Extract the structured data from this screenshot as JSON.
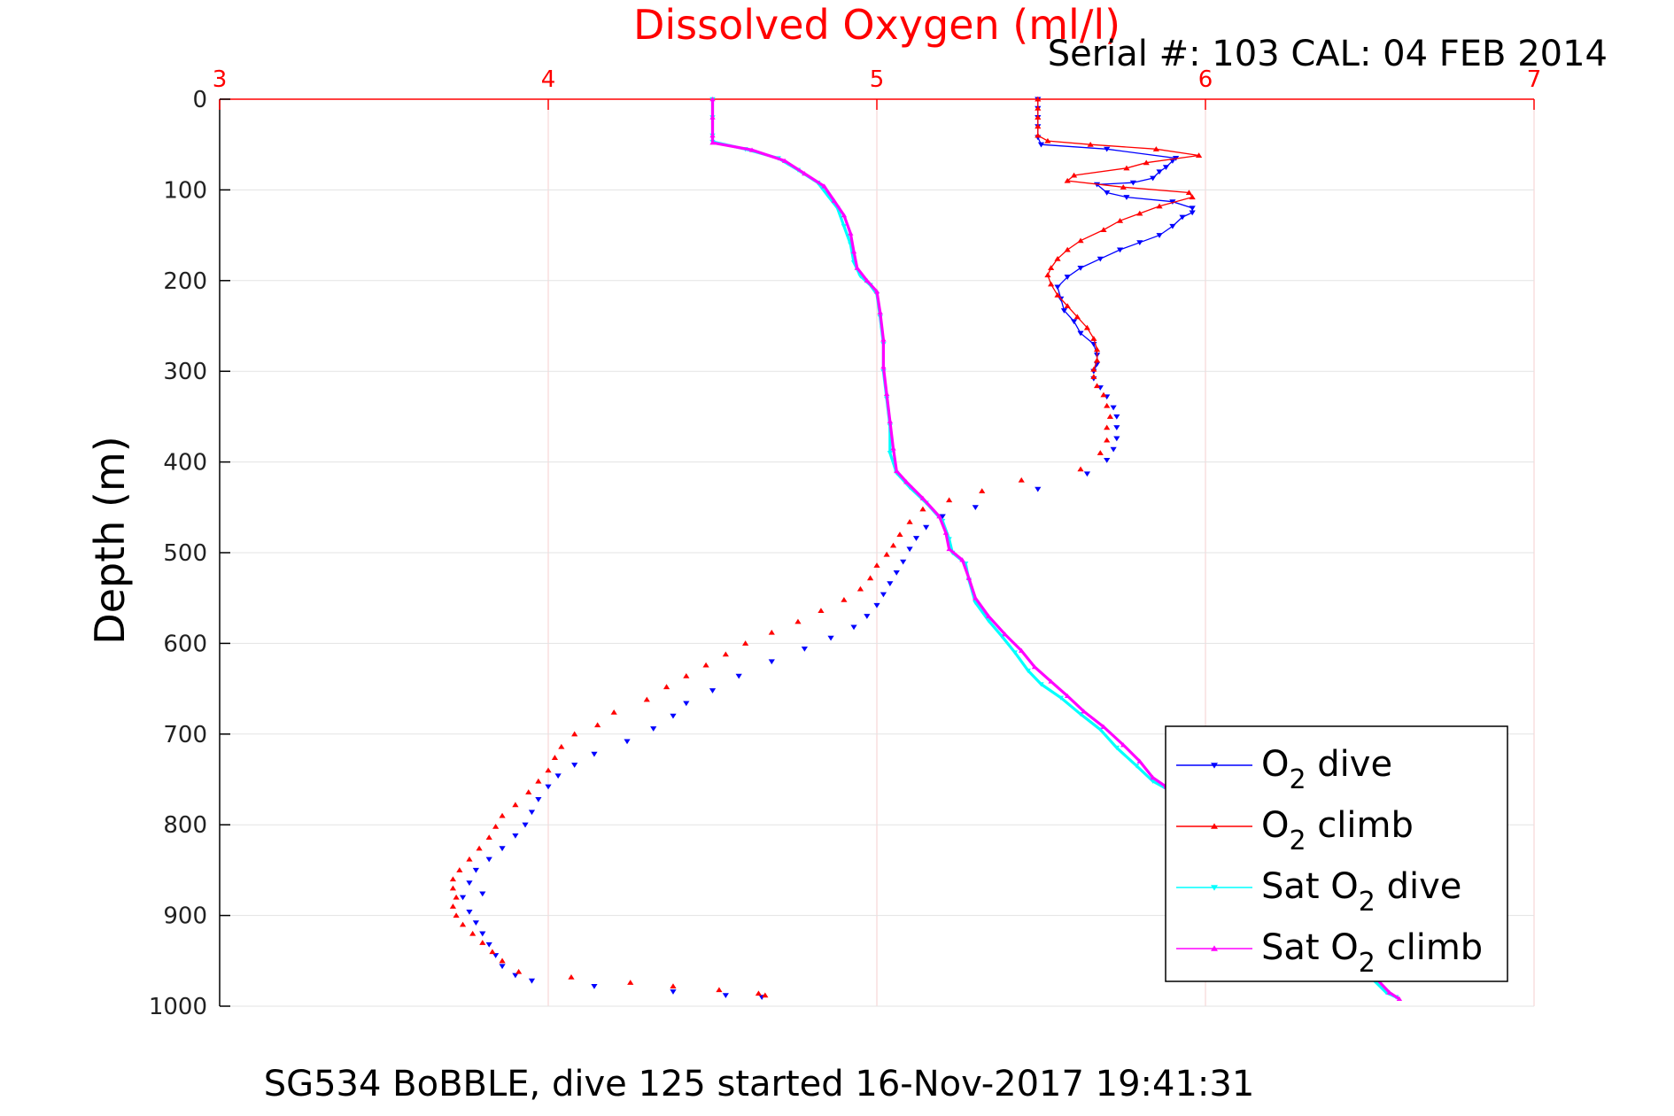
{
  "chart_data": {
    "type": "scatter",
    "title": "Dissolved Oxygen (ml/l)",
    "serial_label": "Serial #: 103  CAL: 04 FEB 2014",
    "caption": "SG534 BoBBLE, dive 125 started 16-Nov-2017 19:41:31",
    "xlabel": "",
    "ylabel": "Depth (m)",
    "xlim": [
      3,
      7
    ],
    "ylim": [
      0,
      1000
    ],
    "y_reversed": true,
    "x_axis_position": "top",
    "x_ticks": [
      3,
      4,
      5,
      6,
      7
    ],
    "y_ticks": [
      0,
      100,
      200,
      300,
      400,
      500,
      600,
      700,
      800,
      900,
      1000
    ],
    "grid": true,
    "legend_position": "bottom-right",
    "colors": {
      "o2_dive": "#0000ff",
      "o2_climb": "#ff0000",
      "sat_dive": "#00ffff",
      "sat_climb": "#ff00ff",
      "x_axis_color": "#ff0000",
      "grid_color": "#f6cfcf"
    },
    "series": [
      {
        "key": "o2_dive",
        "legend_name": "O",
        "legend_sub": "2",
        "legend_suffix": " dive",
        "legend_prefix": "",
        "color": "#0000ff",
        "marker": "triangle-down",
        "connected_to_depth": 300,
        "points": [
          [
            5.49,
            0
          ],
          [
            5.49,
            10
          ],
          [
            5.49,
            20
          ],
          [
            5.49,
            30
          ],
          [
            5.49,
            42
          ],
          [
            5.5,
            50
          ],
          [
            5.7,
            55
          ],
          [
            5.91,
            65
          ],
          [
            5.9,
            68
          ],
          [
            5.88,
            75
          ],
          [
            5.86,
            80
          ],
          [
            5.84,
            87
          ],
          [
            5.78,
            92
          ],
          [
            5.67,
            94
          ],
          [
            5.7,
            103
          ],
          [
            5.76,
            108
          ],
          [
            5.9,
            113
          ],
          [
            5.96,
            120
          ],
          [
            5.96,
            125
          ],
          [
            5.93,
            130
          ],
          [
            5.9,
            140
          ],
          [
            5.86,
            150
          ],
          [
            5.8,
            158
          ],
          [
            5.74,
            166
          ],
          [
            5.68,
            176
          ],
          [
            5.62,
            186
          ],
          [
            5.58,
            196
          ],
          [
            5.55,
            207
          ],
          [
            5.56,
            220
          ],
          [
            5.57,
            233
          ],
          [
            5.6,
            245
          ],
          [
            5.62,
            258
          ],
          [
            5.66,
            270
          ],
          [
            5.67,
            282
          ],
          [
            5.67,
            292
          ],
          [
            5.66,
            300
          ],
          [
            5.66,
            308
          ],
          [
            5.68,
            318
          ],
          [
            5.7,
            328
          ],
          [
            5.72,
            340
          ],
          [
            5.73,
            350
          ],
          [
            5.73,
            362
          ],
          [
            5.73,
            374
          ],
          [
            5.72,
            386
          ],
          [
            5.7,
            398
          ],
          [
            5.64,
            413
          ],
          [
            5.49,
            430
          ],
          [
            5.3,
            450
          ],
          [
            5.2,
            460
          ],
          [
            5.15,
            472
          ],
          [
            5.12,
            484
          ],
          [
            5.1,
            496
          ],
          [
            5.08,
            510
          ],
          [
            5.06,
            522
          ],
          [
            5.04,
            534
          ],
          [
            5.02,
            546
          ],
          [
            5.0,
            558
          ],
          [
            4.97,
            570
          ],
          [
            4.93,
            582
          ],
          [
            4.86,
            594
          ],
          [
            4.78,
            606
          ],
          [
            4.68,
            620
          ],
          [
            4.58,
            636
          ],
          [
            4.5,
            652
          ],
          [
            4.42,
            666
          ],
          [
            4.38,
            680
          ],
          [
            4.32,
            694
          ],
          [
            4.24,
            708
          ],
          [
            4.14,
            722
          ],
          [
            4.08,
            734
          ],
          [
            4.03,
            746
          ],
          [
            4.0,
            758
          ],
          [
            3.97,
            772
          ],
          [
            3.95,
            786
          ],
          [
            3.93,
            800
          ],
          [
            3.9,
            812
          ],
          [
            3.86,
            826
          ],
          [
            3.82,
            838
          ],
          [
            3.78,
            850
          ],
          [
            3.76,
            864
          ],
          [
            3.8,
            876
          ],
          [
            3.74,
            880
          ],
          [
            3.76,
            896
          ],
          [
            3.78,
            908
          ],
          [
            3.8,
            920
          ],
          [
            3.82,
            932
          ],
          [
            3.84,
            944
          ],
          [
            3.86,
            956
          ],
          [
            3.9,
            966
          ],
          [
            3.95,
            972
          ],
          [
            4.14,
            978
          ],
          [
            4.38,
            984
          ],
          [
            4.54,
            988
          ],
          [
            4.65,
            990
          ]
        ]
      },
      {
        "key": "o2_climb",
        "legend_name": "O",
        "legend_sub": "2",
        "legend_suffix": " climb",
        "legend_prefix": "",
        "color": "#ff0000",
        "marker": "triangle-up",
        "connected_to_depth": 300,
        "points": [
          [
            5.49,
            0
          ],
          [
            5.49,
            10
          ],
          [
            5.49,
            20
          ],
          [
            5.49,
            30
          ],
          [
            5.49,
            40
          ],
          [
            5.52,
            46
          ],
          [
            5.65,
            50
          ],
          [
            5.85,
            55
          ],
          [
            5.98,
            62
          ],
          [
            5.82,
            70
          ],
          [
            5.76,
            76
          ],
          [
            5.6,
            84
          ],
          [
            5.58,
            90
          ],
          [
            5.75,
            97
          ],
          [
            5.95,
            103
          ],
          [
            5.96,
            108
          ],
          [
            5.86,
            118
          ],
          [
            5.8,
            126
          ],
          [
            5.74,
            134
          ],
          [
            5.69,
            144
          ],
          [
            5.62,
            156
          ],
          [
            5.58,
            166
          ],
          [
            5.55,
            176
          ],
          [
            5.53,
            186
          ],
          [
            5.52,
            194
          ],
          [
            5.53,
            204
          ],
          [
            5.55,
            216
          ],
          [
            5.58,
            228
          ],
          [
            5.61,
            240
          ],
          [
            5.64,
            252
          ],
          [
            5.66,
            264
          ],
          [
            5.67,
            276
          ],
          [
            5.67,
            288
          ],
          [
            5.66,
            298
          ],
          [
            5.66,
            306
          ],
          [
            5.67,
            316
          ],
          [
            5.69,
            326
          ],
          [
            5.7,
            338
          ],
          [
            5.71,
            350
          ],
          [
            5.7,
            362
          ],
          [
            5.7,
            376
          ],
          [
            5.68,
            390
          ],
          [
            5.62,
            408
          ],
          [
            5.44,
            420
          ],
          [
            5.32,
            432
          ],
          [
            5.22,
            442
          ],
          [
            5.14,
            452
          ],
          [
            5.1,
            466
          ],
          [
            5.07,
            480
          ],
          [
            5.05,
            492
          ],
          [
            5.03,
            502
          ],
          [
            5.0,
            514
          ],
          [
            4.98,
            528
          ],
          [
            4.95,
            540
          ],
          [
            4.9,
            552
          ],
          [
            4.83,
            564
          ],
          [
            4.76,
            576
          ],
          [
            4.68,
            588
          ],
          [
            4.6,
            600
          ],
          [
            4.54,
            612
          ],
          [
            4.48,
            624
          ],
          [
            4.42,
            636
          ],
          [
            4.36,
            648
          ],
          [
            4.3,
            662
          ],
          [
            4.2,
            676
          ],
          [
            4.15,
            690
          ],
          [
            4.08,
            700
          ],
          [
            4.04,
            714
          ],
          [
            4.02,
            726
          ],
          [
            4.0,
            740
          ],
          [
            3.97,
            752
          ],
          [
            3.94,
            764
          ],
          [
            3.9,
            778
          ],
          [
            3.86,
            790
          ],
          [
            3.84,
            802
          ],
          [
            3.82,
            814
          ],
          [
            3.79,
            826
          ],
          [
            3.76,
            838
          ],
          [
            3.73,
            850
          ],
          [
            3.71,
            860
          ],
          [
            3.71,
            870
          ],
          [
            3.72,
            880
          ],
          [
            3.71,
            890
          ],
          [
            3.72,
            900
          ],
          [
            3.74,
            910
          ],
          [
            3.77,
            920
          ],
          [
            3.8,
            930
          ],
          [
            3.83,
            940
          ],
          [
            3.86,
            950
          ],
          [
            3.91,
            962
          ],
          [
            4.07,
            968
          ],
          [
            4.25,
            974
          ],
          [
            4.38,
            978
          ],
          [
            4.52,
            982
          ],
          [
            4.64,
            986
          ],
          [
            4.66,
            988
          ]
        ]
      },
      {
        "key": "sat_dive",
        "legend_name": "O",
        "legend_sub": "2",
        "legend_suffix": " dive",
        "legend_prefix": "Sat ",
        "color": "#00ffff",
        "marker": "triangle-down",
        "connected_to_depth": 1000,
        "points": [
          [
            4.5,
            0
          ],
          [
            4.5,
            20
          ],
          [
            4.5,
            40
          ],
          [
            4.5,
            47
          ],
          [
            4.6,
            55
          ],
          [
            4.7,
            65
          ],
          [
            4.76,
            78
          ],
          [
            4.82,
            92
          ],
          [
            4.85,
            106
          ],
          [
            4.88,
            120
          ],
          [
            4.9,
            140
          ],
          [
            4.92,
            160
          ],
          [
            4.93,
            180
          ],
          [
            4.95,
            195
          ],
          [
            4.98,
            205
          ],
          [
            5.0,
            215
          ],
          [
            5.01,
            240
          ],
          [
            5.02,
            270
          ],
          [
            5.02,
            300
          ],
          [
            5.03,
            330
          ],
          [
            5.04,
            360
          ],
          [
            5.04,
            390
          ],
          [
            5.06,
            412
          ],
          [
            5.1,
            428
          ],
          [
            5.15,
            445
          ],
          [
            5.2,
            465
          ],
          [
            5.22,
            485
          ],
          [
            5.23,
            500
          ],
          [
            5.27,
            512
          ],
          [
            5.28,
            530
          ],
          [
            5.3,
            555
          ],
          [
            5.34,
            575
          ],
          [
            5.38,
            592
          ],
          [
            5.42,
            610
          ],
          [
            5.46,
            630
          ],
          [
            5.5,
            645
          ],
          [
            5.56,
            660
          ],
          [
            5.62,
            678
          ],
          [
            5.68,
            695
          ],
          [
            5.73,
            715
          ],
          [
            5.79,
            735
          ],
          [
            5.84,
            752
          ],
          [
            5.88,
            760
          ],
          [
            5.93,
            772
          ],
          [
            6.02,
            800
          ],
          [
            6.12,
            840
          ],
          [
            6.25,
            880
          ],
          [
            6.38,
            920
          ],
          [
            6.48,
            960
          ],
          [
            6.55,
            985
          ],
          [
            6.58,
            990
          ]
        ]
      },
      {
        "key": "sat_climb",
        "legend_name": "O",
        "legend_sub": "2",
        "legend_suffix": " climb",
        "legend_prefix": "Sat ",
        "color": "#ff00ff",
        "marker": "triangle-up",
        "connected_to_depth": 1000,
        "points": [
          [
            4.5,
            0
          ],
          [
            4.5,
            20
          ],
          [
            4.5,
            40
          ],
          [
            4.5,
            48
          ],
          [
            4.62,
            56
          ],
          [
            4.72,
            68
          ],
          [
            4.78,
            82
          ],
          [
            4.84,
            96
          ],
          [
            4.87,
            112
          ],
          [
            4.9,
            128
          ],
          [
            4.92,
            148
          ],
          [
            4.93,
            168
          ],
          [
            4.94,
            186
          ],
          [
            4.97,
            200
          ],
          [
            5.0,
            212
          ],
          [
            5.01,
            235
          ],
          [
            5.02,
            265
          ],
          [
            5.02,
            295
          ],
          [
            5.03,
            325
          ],
          [
            5.04,
            355
          ],
          [
            5.05,
            385
          ],
          [
            5.06,
            410
          ],
          [
            5.09,
            422
          ],
          [
            5.14,
            440
          ],
          [
            5.19,
            460
          ],
          [
            5.21,
            478
          ],
          [
            5.22,
            496
          ],
          [
            5.26,
            508
          ],
          [
            5.28,
            528
          ],
          [
            5.3,
            550
          ],
          [
            5.34,
            570
          ],
          [
            5.39,
            590
          ],
          [
            5.44,
            608
          ],
          [
            5.48,
            626
          ],
          [
            5.53,
            642
          ],
          [
            5.58,
            658
          ],
          [
            5.63,
            675
          ],
          [
            5.69,
            692
          ],
          [
            5.75,
            712
          ],
          [
            5.8,
            730
          ],
          [
            5.84,
            748
          ],
          [
            5.88,
            758
          ],
          [
            5.94,
            775
          ],
          [
            6.04,
            805
          ],
          [
            6.14,
            845
          ],
          [
            6.27,
            885
          ],
          [
            6.4,
            925
          ],
          [
            6.5,
            962
          ],
          [
            6.56,
            985
          ],
          [
            6.59,
            992
          ]
        ]
      }
    ]
  }
}
